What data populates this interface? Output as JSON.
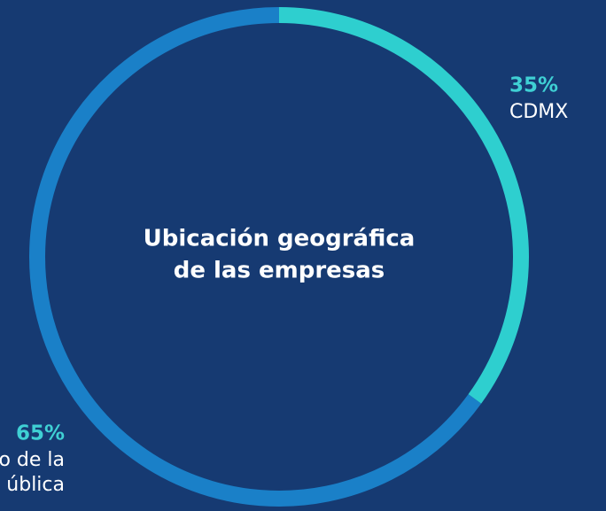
{
  "chart_data": {
    "type": "donut",
    "title": [
      "Ubicación geográfica",
      "de las empresas"
    ],
    "categories": [
      [
        "CDMX"
      ],
      [
        "o de la",
        "ública"
      ]
    ],
    "values": [
      35,
      65
    ],
    "value_labels": [
      "35%",
      "65%"
    ],
    "colors": [
      "#2ecfcf",
      "#1a80c8"
    ]
  }
}
